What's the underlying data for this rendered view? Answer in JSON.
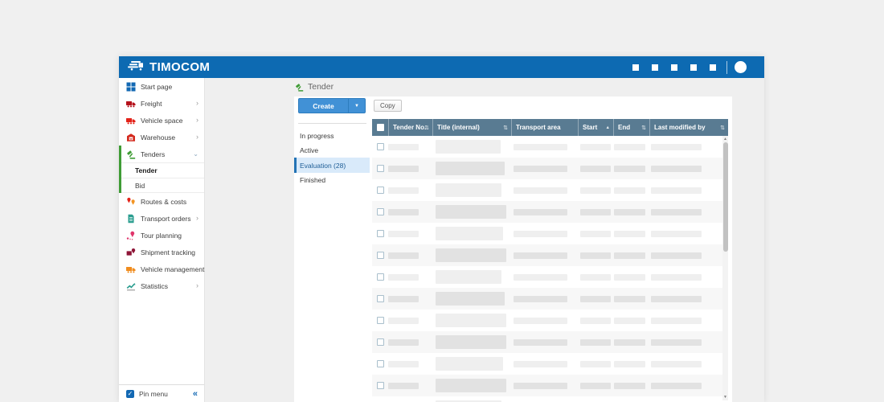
{
  "colors": {
    "header_blue": "#0d6ab2",
    "accent_blue": "#2373b5",
    "create_button_blue": "#4191d6",
    "table_header_slate": "#597b92",
    "active_green": "#3f9c35",
    "subnav_selected_bg": "#d9eafa"
  },
  "app_header": {
    "logo_text": "TIMOCOM",
    "logo_icon": "timocom-truck-icon",
    "menu_square_count": 5,
    "avatar_icon": "user-avatar"
  },
  "sidebar": {
    "items": [
      {
        "label": "Start page",
        "icon": "grid-icon",
        "color": "#1268b3",
        "chevron": ""
      },
      {
        "label": "Freight",
        "icon": "truck-icon",
        "color": "#b5121b",
        "chevron": "right"
      },
      {
        "label": "Vehicle space",
        "icon": "truck-icon",
        "color": "#e32219",
        "chevron": "right"
      },
      {
        "label": "Warehouse",
        "icon": "warehouse-icon",
        "color": "#d42a1e",
        "chevron": "right"
      },
      {
        "label": "Tenders",
        "icon": "gavel-icon",
        "color": "#3f9c35",
        "chevron": "down",
        "expanded": true
      },
      {
        "label": "Tender",
        "sub": true,
        "selected": true,
        "divider_top": true
      },
      {
        "label": "Bid",
        "sub": true,
        "divider_top": true,
        "divider_bottom": true
      },
      {
        "label": "Routes & costs",
        "icon": "map-pins-icon",
        "color": "#e32219",
        "chevron": ""
      },
      {
        "label": "Transport orders",
        "icon": "document-icon",
        "color": "#2a9d8f",
        "chevron": "right"
      },
      {
        "label": "Tour planning",
        "icon": "route-pin-icon",
        "color": "#e0356b",
        "chevron": ""
      },
      {
        "label": "Shipment tracking",
        "icon": "package-tracking-icon",
        "color": "#8e1537",
        "chevron": ""
      },
      {
        "label": "Vehicle management",
        "icon": "truck-icon",
        "color": "#f08c1e",
        "chevron": "right"
      },
      {
        "label": "Statistics",
        "icon": "chart-icon",
        "color": "#2a9d8f",
        "chevron": "right"
      }
    ],
    "pin_menu": {
      "label": "Pin menu",
      "checked": true,
      "check_glyph": "✓",
      "collapse_glyph": "«"
    }
  },
  "main": {
    "page_title": "Tender",
    "page_title_icon": "gavel-icon",
    "toolbar": {
      "create_label": "Create",
      "create_arrow_glyph": "▼",
      "copy_label": "Copy"
    },
    "subnav": {
      "items": [
        {
          "label": "In progress"
        },
        {
          "label": "Active"
        },
        {
          "label": "Evaluation (28)",
          "selected": true
        },
        {
          "label": "Finished"
        }
      ]
    },
    "table": {
      "select_all_checked": true,
      "sort_glyphs": {
        "both": "⇅",
        "asc": "▲"
      },
      "columns": [
        {
          "label": "Tender No.",
          "sort": "both"
        },
        {
          "label": "Title (internal)",
          "sort": "both"
        },
        {
          "label": "Transport area",
          "sort": "none"
        },
        {
          "label": "Start",
          "sort": "asc"
        },
        {
          "label": "End",
          "sort": "both"
        },
        {
          "label": "Last modified by",
          "sort": "both"
        }
      ],
      "rows": [
        {
          "shade": "light",
          "title_bar_width": 81
        },
        {
          "shade": "dark",
          "title_bar_width": 86
        },
        {
          "shade": "light",
          "title_bar_width": 82
        },
        {
          "shade": "dark",
          "title_bar_width": 88
        },
        {
          "shade": "light",
          "title_bar_width": 84
        },
        {
          "shade": "dark",
          "title_bar_width": 88
        },
        {
          "shade": "light",
          "title_bar_width": 82
        },
        {
          "shade": "dark",
          "title_bar_width": 86
        },
        {
          "shade": "light",
          "title_bar_width": 88
        },
        {
          "shade": "dark",
          "title_bar_width": 88
        },
        {
          "shade": "light",
          "title_bar_width": 84
        },
        {
          "shade": "dark",
          "title_bar_width": 88
        },
        {
          "shade": "light",
          "title_bar_width": 82
        }
      ],
      "scrollbar": {
        "up_glyph": "▲",
        "down_glyph": "▼"
      }
    }
  }
}
